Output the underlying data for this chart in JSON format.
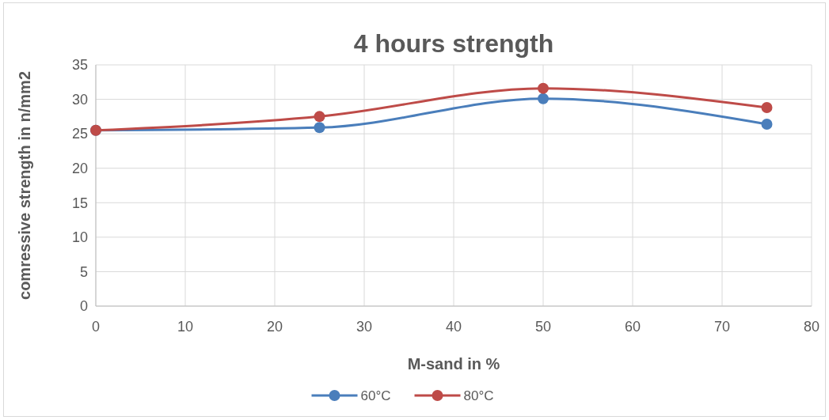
{
  "chart_data": {
    "type": "line",
    "title": "4 hours strength",
    "xlabel": "M-sand in %",
    "ylabel": "comressive strength in n/mm2",
    "x": [
      0,
      25,
      50,
      75
    ],
    "series": [
      {
        "name": "60°C",
        "color": "#4a7ebb",
        "values": [
          25.5,
          25.9,
          30.1,
          26.4
        ]
      },
      {
        "name": "80°C",
        "color": "#be4b48",
        "values": [
          25.5,
          27.5,
          31.6,
          28.8
        ]
      }
    ],
    "xlim": [
      0,
      80
    ],
    "xticks": [
      0,
      10,
      20,
      30,
      40,
      50,
      60,
      70,
      80
    ],
    "ylim": [
      0,
      35
    ],
    "yticks": [
      0,
      5,
      10,
      15,
      20,
      25,
      30,
      35
    ],
    "grid": true,
    "legend": "bottom",
    "marker": "circle",
    "line_style": "solid"
  }
}
